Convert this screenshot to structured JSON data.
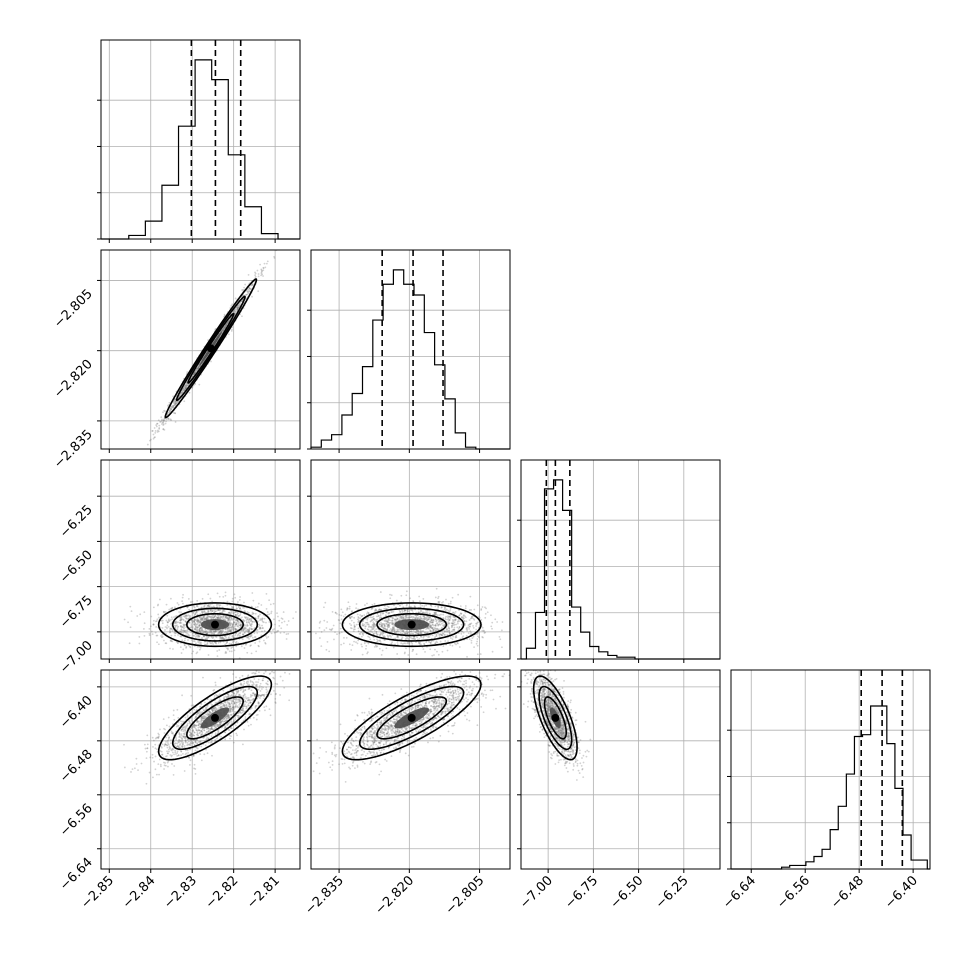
{
  "chart_data": {
    "type": "corner",
    "grid": true,
    "parameters": [
      {
        "range": [
          -2.852,
          -2.804
        ],
        "ticks": [
          -2.85,
          -2.84,
          -2.83,
          -2.82,
          -2.81
        ],
        "tick_labels": [
          "−2.85",
          "−2.84",
          "−2.83",
          "−2.82",
          "−2.81"
        ],
        "hist_bins": [
          -2.8453,
          -2.8413,
          -2.8373,
          -2.8333,
          -2.8293,
          -2.8253,
          -2.8213,
          -2.8173,
          -2.8133,
          -2.8093,
          -2.8053
        ],
        "hist_density": [
          0.02,
          0.1,
          0.3,
          0.63,
          1.0,
          0.89,
          0.47,
          0.18,
          0.03,
          0.0
        ],
        "quantiles": [
          -2.8302,
          -2.8244,
          -2.8183
        ]
      },
      {
        "range": [
          -2.841,
          -2.7985
        ],
        "ticks": [
          -2.835,
          -2.82,
          -2.805
        ],
        "tick_labels": [
          "−2.835",
          "−2.820",
          "−2.805"
        ],
        "hist_bins": [
          -2.841,
          -2.8388,
          -2.8366,
          -2.8344,
          -2.8322,
          -2.83,
          -2.8278,
          -2.8256,
          -2.8234,
          -2.8212,
          -2.819,
          -2.8168,
          -2.8146,
          -2.8124,
          -2.8102,
          -2.808,
          -2.8058,
          -2.8036
        ],
        "hist_density": [
          0.01,
          0.05,
          0.08,
          0.19,
          0.31,
          0.46,
          0.72,
          0.92,
          1.0,
          0.92,
          0.86,
          0.65,
          0.47,
          0.28,
          0.09,
          0.01,
          0.0
        ],
        "quantiles": [
          -2.8258,
          -2.8192,
          -2.8128
        ]
      },
      {
        "range": [
          -7.15,
          -6.05
        ],
        "ticks": [
          -7.0,
          -6.75,
          -6.5,
          -6.25
        ],
        "tick_labels": [
          "−7.00",
          "−6.75",
          "−6.50",
          "−6.25"
        ],
        "hist_bins": [
          -7.12,
          -7.07,
          -7.02,
          -6.97,
          -6.92,
          -6.87,
          -6.82,
          -6.77,
          -6.72,
          -6.67,
          -6.62,
          -6.57,
          -6.52
        ],
        "hist_density": [
          0.06,
          0.26,
          0.95,
          1.0,
          0.83,
          0.29,
          0.15,
          0.07,
          0.04,
          0.02,
          0.01,
          0.01
        ],
        "quantiles": [
          -7.01,
          -6.96,
          -6.88
        ]
      },
      {
        "range": [
          -6.67,
          -6.375
        ],
        "ticks": [
          -6.64,
          -6.56,
          -6.48,
          -6.4
        ],
        "tick_labels": [
          "−6.64",
          "−6.56",
          "−6.48",
          "−6.40"
        ],
        "hist_bins": [
          -6.595,
          -6.583,
          -6.571,
          -6.559,
          -6.547,
          -6.535,
          -6.523,
          -6.511,
          -6.499,
          -6.487,
          -6.475,
          -6.463,
          -6.451,
          -6.439,
          -6.427,
          -6.415,
          -6.403,
          -6.391,
          -6.379
        ],
        "hist_density": [
          0.01,
          0.02,
          0.02,
          0.04,
          0.07,
          0.11,
          0.22,
          0.35,
          0.53,
          0.74,
          0.75,
          0.91,
          0.91,
          0.7,
          0.45,
          0.19,
          0.05,
          0.05
        ],
        "quantiles": [
          -6.477,
          -6.446,
          -6.416
        ]
      }
    ],
    "pairs": [
      {
        "x": 0,
        "y": 1,
        "center": [
          -2.8255,
          -2.8195
        ],
        "sigma": [
          0.0055,
          0.0074
        ],
        "corr": 0.99
      },
      {
        "x": 0,
        "y": 2,
        "center": [
          -2.8245,
          -6.96
        ],
        "sigma": [
          0.0068,
          0.06
        ],
        "corr": 0.0
      },
      {
        "x": 1,
        "y": 2,
        "center": [
          -2.8195,
          -6.96
        ],
        "sigma": [
          0.0074,
          0.06
        ],
        "corr": 0.0
      },
      {
        "x": 0,
        "y": 3,
        "center": [
          -2.8245,
          -6.446
        ],
        "sigma": [
          0.0068,
          0.031
        ],
        "corr": 0.8
      },
      {
        "x": 1,
        "y": 3,
        "center": [
          -2.8195,
          -6.446
        ],
        "sigma": [
          0.0074,
          0.031
        ],
        "corr": 0.8
      },
      {
        "x": 2,
        "y": 3,
        "center": [
          -6.96,
          -6.446
        ],
        "sigma": [
          0.06,
          0.031
        ],
        "corr": -0.7
      }
    ]
  }
}
